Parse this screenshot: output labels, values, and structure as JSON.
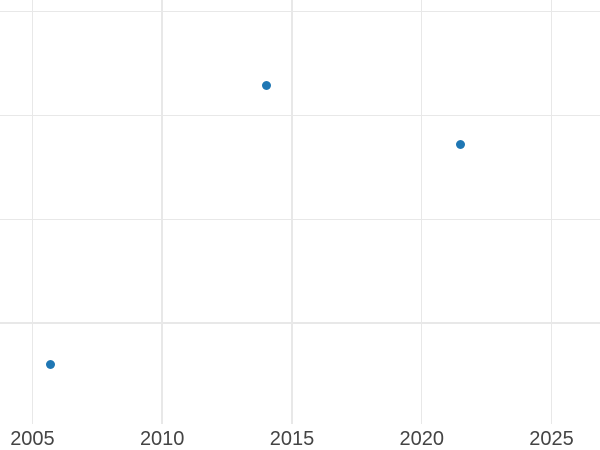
{
  "chart_data": {
    "type": "scatter",
    "title": "",
    "xlabel": "",
    "ylabel": "",
    "grid": true,
    "legend": false,
    "background_color": "#ffffff",
    "gridline_color": "#e8e8e8",
    "tick_label_color": "#444444",
    "x_axis": {
      "tick_labels": [
        "2005",
        "2010",
        "2015",
        "2020",
        "2025"
      ],
      "tick_values": [
        2005,
        2010,
        2015,
        2020,
        2025
      ],
      "range": [
        2003.75,
        2026.87
      ]
    },
    "y_axis": {
      "tick_labels": [],
      "gridline_values": [
        1,
        2,
        3,
        4
      ],
      "range": [
        0.03,
        4.11
      ]
    },
    "series": [
      {
        "name": "series-1",
        "marker": "circle",
        "color": "#1f77b4",
        "marker_diameter_px": 9,
        "points": [
          {
            "x": 2005.7,
            "y": 0.6
          },
          {
            "x": 2014.0,
            "y": 3.29
          },
          {
            "x": 2021.5,
            "y": 2.72
          }
        ]
      }
    ]
  }
}
